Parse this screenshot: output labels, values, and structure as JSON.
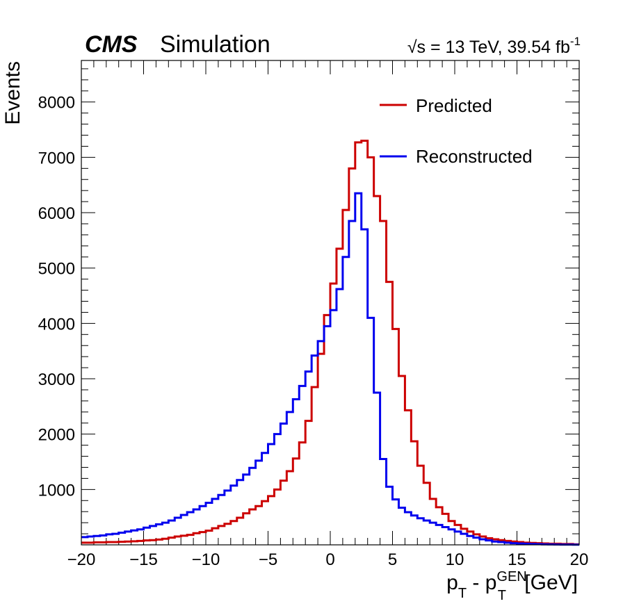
{
  "header": {
    "cms": "CMS",
    "simulation": "Simulation",
    "sqrt": "√",
    "energy_text": "s = 13 TeV, 39.54 fb",
    "energy_sup": "-1"
  },
  "axes": {
    "ylabel": "Events",
    "xlabel_p1": "p",
    "xlabel_sub1": "T",
    "xlabel_mid": " - p",
    "xlabel_sup": "GEN",
    "xlabel_sub2": "T",
    "xlabel_tail": " [GeV]"
  },
  "legend": {
    "predicted": "Predicted",
    "reconstructed": "Reconstructed"
  },
  "chart_data": {
    "type": "line",
    "histtype": "step",
    "title": "",
    "xlabel": "p_T - p_T^GEN [GeV]",
    "ylabel": "Events",
    "xlim": [
      -20,
      20
    ],
    "ylim": [
      0,
      8750
    ],
    "x_ticks": [
      -20,
      -15,
      -10,
      -5,
      0,
      5,
      10,
      15,
      20
    ],
    "x_tick_labels": [
      "−20",
      "−15",
      "−10",
      "−5",
      "0",
      "5",
      "10",
      "15",
      "20"
    ],
    "y_ticks": [
      1000,
      2000,
      3000,
      4000,
      5000,
      6000,
      7000,
      8000
    ],
    "y_tick_labels": [
      "1000",
      "2000",
      "3000",
      "4000",
      "5000",
      "6000",
      "7000",
      "8000"
    ],
    "grid": false,
    "legend_position": "top-right",
    "bin_edges": [
      -20,
      -19.5,
      -19,
      -18.5,
      -18,
      -17.5,
      -17,
      -16.5,
      -16,
      -15.5,
      -15,
      -14.5,
      -14,
      -13.5,
      -13,
      -12.5,
      -12,
      -11.5,
      -11,
      -10.5,
      -10,
      -9.5,
      -9,
      -8.5,
      -8,
      -7.5,
      -7,
      -6.5,
      -6,
      -5.5,
      -5,
      -4.5,
      -4,
      -3.5,
      -3,
      -2.5,
      -2,
      -1.5,
      -1,
      -0.5,
      0,
      0.5,
      1,
      1.5,
      2,
      2.5,
      3,
      3.5,
      4,
      4.5,
      5,
      5.5,
      6,
      6.5,
      7,
      7.5,
      8,
      8.5,
      9,
      9.5,
      10,
      10.5,
      11,
      11.5,
      12,
      12.5,
      13,
      13.5,
      14,
      14.5,
      15,
      15.5,
      16,
      16.5,
      17,
      17.5,
      18,
      18.5,
      19,
      19.5,
      20
    ],
    "series": [
      {
        "name": "Predicted",
        "color": "#cc0000",
        "values": [
          40,
          40,
          45,
          45,
          50,
          50,
          55,
          60,
          65,
          70,
          80,
          85,
          95,
          110,
          130,
          150,
          165,
          180,
          210,
          230,
          255,
          300,
          340,
          380,
          430,
          490,
          570,
          640,
          700,
          790,
          880,
          1000,
          1160,
          1330,
          1560,
          1850,
          2240,
          2850,
          3450,
          4150,
          4720,
          5350,
          6050,
          6800,
          7270,
          7300,
          7000,
          6300,
          5850,
          4750,
          3900,
          3050,
          2430,
          1870,
          1430,
          1120,
          830,
          680,
          560,
          430,
          360,
          290,
          240,
          190,
          150,
          120,
          100,
          85,
          70,
          60,
          50,
          40,
          35,
          30,
          25,
          20,
          20,
          15,
          15,
          10
        ]
      },
      {
        "name": "Reconstructed",
        "color": "#0000ee",
        "values": [
          140,
          150,
          160,
          170,
          190,
          200,
          220,
          240,
          260,
          280,
          310,
          340,
          370,
          400,
          440,
          490,
          540,
          590,
          640,
          700,
          760,
          830,
          900,
          980,
          1070,
          1170,
          1270,
          1390,
          1520,
          1660,
          1820,
          2000,
          2190,
          2400,
          2630,
          2870,
          3130,
          3420,
          3680,
          3950,
          4240,
          4620,
          5200,
          5850,
          6350,
          5700,
          4100,
          2750,
          1550,
          1050,
          820,
          670,
          590,
          530,
          480,
          440,
          400,
          360,
          320,
          280,
          240,
          200,
          160,
          130,
          100,
          80,
          60,
          50,
          40,
          30,
          25,
          20,
          15,
          12,
          10,
          8,
          6,
          5,
          4,
          3
        ]
      }
    ]
  }
}
